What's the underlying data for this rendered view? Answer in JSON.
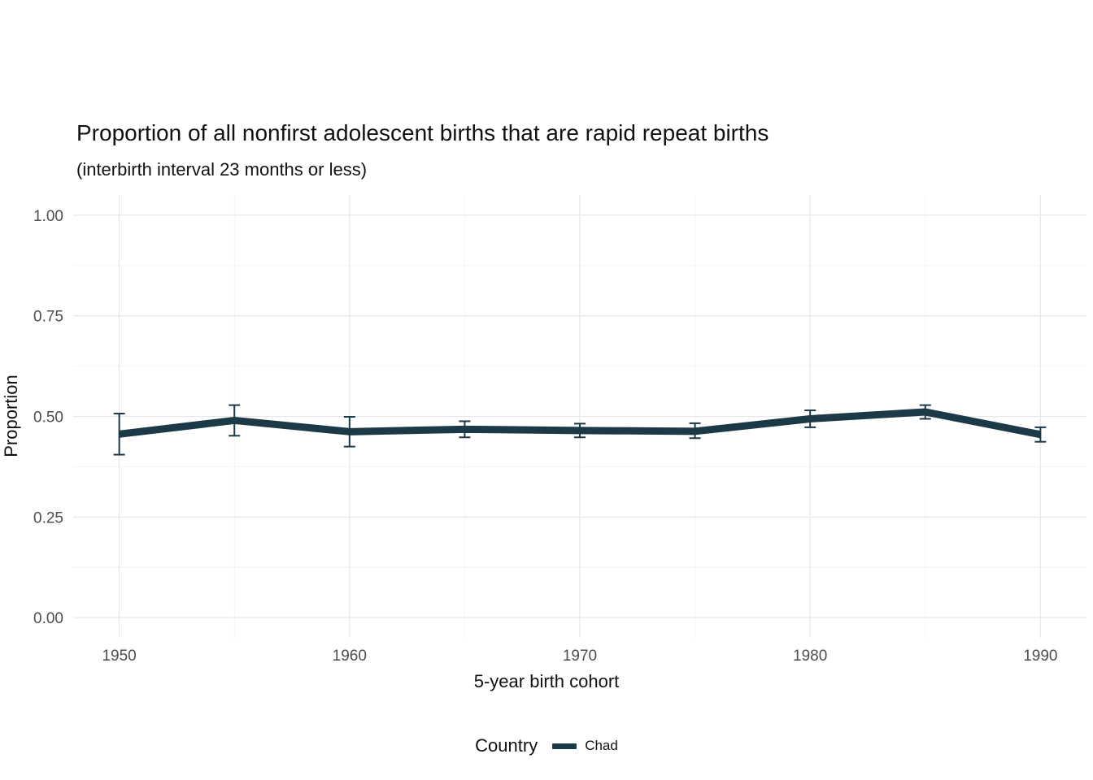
{
  "chart_data": {
    "type": "line",
    "title": "Proportion of all nonfirst adolescent births that are rapid repeat births",
    "subtitle": "(interbirth interval 23 months or less)",
    "xlabel": "5-year birth cohort",
    "ylabel": "Proportion",
    "legend": {
      "title": "Country",
      "position": "bottom",
      "entries": [
        {
          "label": "Chad",
          "color": "#1b3947"
        }
      ]
    },
    "x": [
      1950,
      1955,
      1960,
      1965,
      1970,
      1975,
      1980,
      1985,
      1990
    ],
    "series": [
      {
        "name": "Chad",
        "color": "#1b3947",
        "values": [
          0.456,
          0.49,
          0.462,
          0.468,
          0.465,
          0.463,
          0.494,
          0.511,
          0.455
        ],
        "lower": [
          0.405,
          0.452,
          0.425,
          0.448,
          0.448,
          0.446,
          0.473,
          0.494,
          0.437
        ],
        "upper": [
          0.507,
          0.528,
          0.499,
          0.488,
          0.482,
          0.483,
          0.515,
          0.528,
          0.473
        ]
      }
    ],
    "error_bars": true,
    "xticks": [
      1950,
      1960,
      1970,
      1980,
      1990
    ],
    "yticks": [
      {
        "value": 0.0,
        "label": "0.00"
      },
      {
        "value": 0.25,
        "label": "0.25"
      },
      {
        "value": 0.5,
        "label": "0.50"
      },
      {
        "value": 0.75,
        "label": "0.75"
      },
      {
        "value": 1.0,
        "label": "1.00"
      }
    ],
    "x_minor": [
      1955,
      1965,
      1975,
      1985
    ],
    "y_minor": [
      0.125,
      0.375,
      0.625,
      0.875
    ],
    "x_domain": [
      1948,
      1992
    ],
    "y_domain": [
      -0.05,
      1.05
    ],
    "ylim": [
      0,
      1
    ],
    "grid": true,
    "colors": {
      "background": "#ffffff",
      "grid_major": "#e8e8e8",
      "grid_minor": "#f4f4f4",
      "tick_text": "#4d4d4d",
      "line": "#1b3947"
    }
  }
}
